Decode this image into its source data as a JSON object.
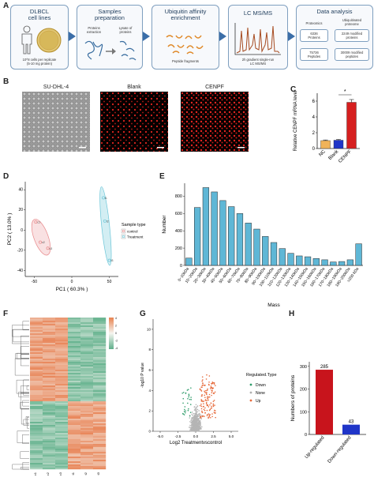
{
  "panels": {
    "a": "A",
    "b": "B",
    "c": "C",
    "d": "D",
    "e": "E",
    "f": "F",
    "g": "G",
    "h": "H"
  },
  "workflow": {
    "box1": {
      "title": "DLBCL\ncell lines",
      "caption1": "10^8 cells per replicate",
      "caption2": "(5-10 mg protein)"
    },
    "box2": {
      "title": "Samples\npreparation",
      "step1": "Proteins\nextraction",
      "step2": "Lysate of\nproteins"
    },
    "box3": {
      "title": "Ubiquitin affinity\nenrichment",
      "caption": "Peptide fragments"
    },
    "box4": {
      "title": "LC MS/MS",
      "caption": "2h gradient single-run\nLC MS/MS"
    },
    "box5": {
      "title": "Data analysis",
      "col1": "Proteomics",
      "col2": "Ubiquitinated\nproteome",
      "r1c1": "6336\nProteins",
      "r1c2": "2249 modified\nproteins",
      "r2c1": "75736\nPeptides",
      "r2c2": "30009 modified\npeptides"
    }
  },
  "micrographs": {
    "titles": [
      "SU-DHL-4",
      "Blank",
      "CENPF"
    ]
  },
  "icons": {
    "person": "person-icon",
    "dish": "petri-dish-icon",
    "tube": "tube-icon",
    "fragments": "peptide-fragments-icon",
    "chromatogram": "chromatogram-icon"
  },
  "chart_c": {
    "type": "bar",
    "ylabel": "Relative CENPF mRNA level",
    "categories": [
      "NC",
      "Blank",
      "CENPF"
    ],
    "values": [
      1.0,
      1.05,
      5.85
    ],
    "errors": [
      0.08,
      0.1,
      0.35
    ],
    "colors": [
      "#f0b35a",
      "#1f35c8",
      "#d61f1f"
    ],
    "yticks": [
      0,
      2,
      4,
      6
    ],
    "ylim": [
      0,
      7
    ],
    "sig": "*"
  },
  "chart_d": {
    "type": "scatter",
    "xlabel": "PC1 ( 60.3% )",
    "ylabel": "PC2 ( 13.0% )",
    "legend_title": "Sample type",
    "legend": [
      {
        "name": "control",
        "color": "#e8888a"
      },
      {
        "name": "Treatment",
        "color": "#6cc6d8"
      }
    ],
    "xticks": [
      -50,
      0,
      50
    ],
    "yticks": [
      -40,
      -20,
      0,
      20,
      40
    ],
    "xlim": [
      -62,
      62
    ],
    "ylim": [
      -46,
      48
    ],
    "series": [
      {
        "name": "control",
        "points": [
          [
            -48,
            8,
            "c1"
          ],
          [
            -42,
            -12,
            "c2"
          ],
          [
            -32,
            -18,
            "c3"
          ]
        ]
      },
      {
        "name": "Treatment",
        "points": [
          [
            42,
            32,
            "t1"
          ],
          [
            44,
            9,
            "t2"
          ],
          [
            50,
            -30,
            "t3"
          ]
        ]
      }
    ]
  },
  "chart_e": {
    "type": "bar",
    "xlabel": "Mass",
    "ylabel": "Number",
    "categories": [
      "0~10kDa",
      "10~20kDa",
      "20~30kDa",
      "30~40kDa",
      "40~50kDa",
      "50~60kDa",
      "60~70kDa",
      "70~80kDa",
      "80~90kDa",
      "90~100kDa",
      "100~110kDa",
      "110~120kDa",
      "120~130kDa",
      "130~140kDa",
      "140~150kDa",
      "150~160kDa",
      "160~170kDa",
      "170~180kDa",
      "180~190kDa",
      "190~200kDa",
      ">200 kDa"
    ],
    "values": [
      85,
      670,
      900,
      850,
      750,
      680,
      600,
      490,
      420,
      335,
      265,
      195,
      140,
      110,
      100,
      80,
      65,
      40,
      45,
      65,
      250
    ],
    "yticks": [
      0,
      200,
      400,
      600,
      800
    ],
    "ylim": [
      0,
      950
    ],
    "color": "#5fb7d6"
  },
  "chart_f": {
    "type": "heatmap",
    "columns": [
      "c1",
      "c2",
      "c3",
      "t1",
      "t2",
      "t3"
    ],
    "legend_ticks": [
      "4",
      "2",
      "0",
      "-2",
      "-4"
    ]
  },
  "chart_g": {
    "type": "scatter",
    "xlabel": "Log2 Treatmentvscontrol",
    "ylabel": "-log10 P value",
    "legend_title": "Regulated.Type",
    "legend": [
      {
        "name": "Down",
        "color": "#2e9c6a"
      },
      {
        "name": "None",
        "color": "#b0b0b0"
      },
      {
        "name": "Up",
        "color": "#e66a3b"
      }
    ],
    "xticks": [
      "-5.0",
      "-2.5",
      "0.0",
      "2.5",
      "5.0"
    ],
    "yticks": [
      "0",
      "2",
      "4",
      "6",
      "8",
      "10"
    ]
  },
  "chart_h": {
    "type": "bar",
    "ylabel": "Numbers of proteins",
    "categories": [
      "Up-regulated",
      "Down-regulated"
    ],
    "values": [
      285,
      43
    ],
    "labels": [
      "285",
      "43"
    ],
    "colors": [
      "#c8141c",
      "#1f35c8"
    ],
    "yticks": [
      0,
      100,
      200,
      300
    ],
    "ylim": [
      0,
      320
    ]
  }
}
